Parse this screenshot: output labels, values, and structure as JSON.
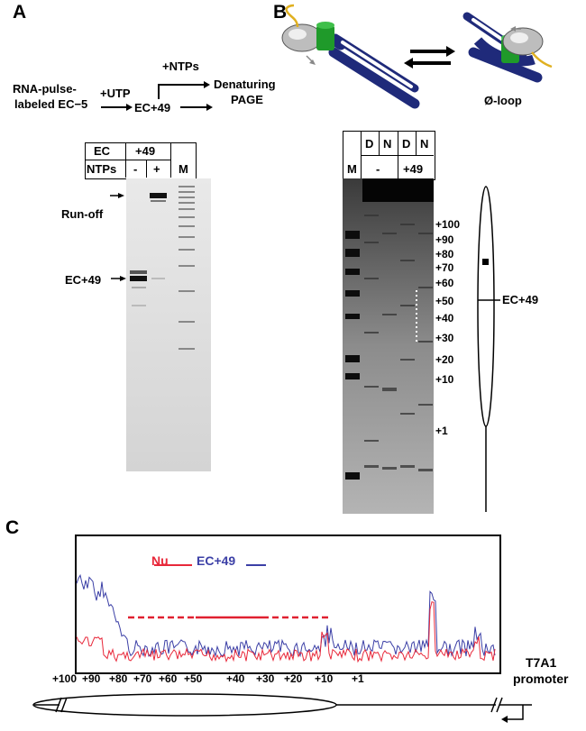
{
  "panel_a": {
    "letter": "A",
    "scheme": {
      "start_line1": "RNA-pulse-",
      "start_line2": "labeled EC−5",
      "utp": "+UTP",
      "ec": "EC+49",
      "ntps": "+NTPs",
      "end_line1": "Denaturing",
      "end_line2": "PAGE"
    },
    "table": {
      "ec_label": "EC",
      "ec_value": "+49",
      "ntps_label": "NTPs",
      "minus": "-",
      "plus": "+",
      "m": "M"
    },
    "gel_labels": {
      "runoff": "Run-off",
      "ec49": "EC+49"
    }
  },
  "panel_b": {
    "letter": "B",
    "oloop": "Ø-loop",
    "header": {
      "m": "M",
      "d1": "D",
      "n1": "N",
      "d2": "D",
      "n2": "N",
      "minus": "-",
      "plus49": "+49"
    },
    "markers": [
      "+100",
      "+90",
      "+80",
      "+70",
      "+60",
      "+50",
      "+40",
      "+30",
      "+20",
      "+10",
      "+1"
    ],
    "ec49": "EC+49"
  },
  "panel_c": {
    "letter": "C",
    "legend": {
      "nu": "Nu",
      "ec": "EC+49"
    },
    "colors": {
      "nu": "#e8283a",
      "ec": "#3b3fa6",
      "dash": "#e02030"
    },
    "ticks": [
      "+100",
      "+90",
      "+80",
      "+70",
      "+60",
      "+50",
      "+40",
      "+30",
      "+20",
      "+10",
      "+1"
    ],
    "promoter_line1": "T7A1",
    "promoter_line2": "promoter"
  }
}
